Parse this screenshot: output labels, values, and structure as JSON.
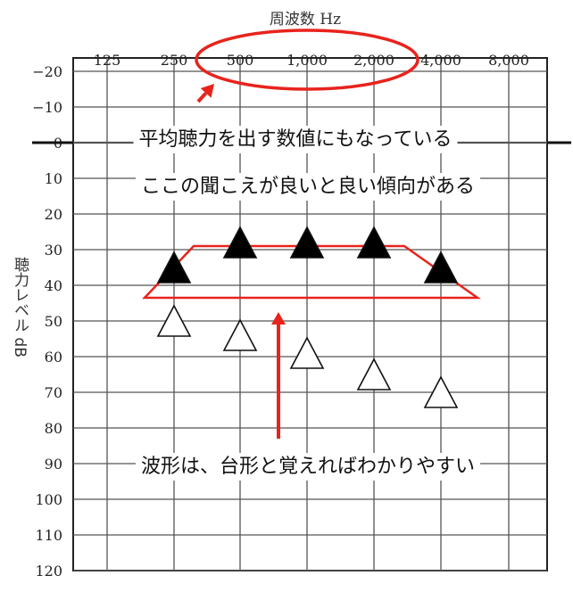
{
  "chart_data": {
    "type": "scatter",
    "title": "周波数 Hz",
    "ylabel": "聴力レベル dB",
    "x_categories": [
      "125",
      "250",
      "500",
      "1,000",
      "2,000",
      "4,000",
      "8,000"
    ],
    "y_ticks": [
      "−20",
      "−10",
      "0",
      "10",
      "20",
      "30",
      "40",
      "50",
      "60",
      "70",
      "80",
      "90",
      "100",
      "110",
      "120"
    ],
    "y_tick_values": [
      -20,
      -10,
      0,
      10,
      20,
      30,
      40,
      50,
      60,
      70,
      80,
      90,
      100,
      110,
      120
    ],
    "ylim": [
      -20,
      120
    ],
    "y_inverted": true,
    "grid": true,
    "series": [
      {
        "marker": "filled-triangle",
        "points": [
          {
            "x": "250",
            "y": 35
          },
          {
            "x": "500",
            "y": 28
          },
          {
            "x": "1,000",
            "y": 28
          },
          {
            "x": "2,000",
            "y": 28
          },
          {
            "x": "4,000",
            "y": 35
          }
        ]
      },
      {
        "marker": "open-triangle",
        "points": [
          {
            "x": "250",
            "y": 50
          },
          {
            "x": "500",
            "y": 54
          },
          {
            "x": "1,000",
            "y": 59
          },
          {
            "x": "2,000",
            "y": 65
          },
          {
            "x": "4,000",
            "y": 70
          }
        ]
      }
    ],
    "annotations": {
      "note1": "平均聴力を出す数値にもなっている",
      "note2": "ここの聞こえが良いと良い傾向がある",
      "note3": "波形は、台形と覚えればわかりやすい"
    }
  },
  "colors": {
    "accent": "#e8231c",
    "grid": "#555555",
    "frame": "#222222",
    "filled_marker": "#000000"
  }
}
